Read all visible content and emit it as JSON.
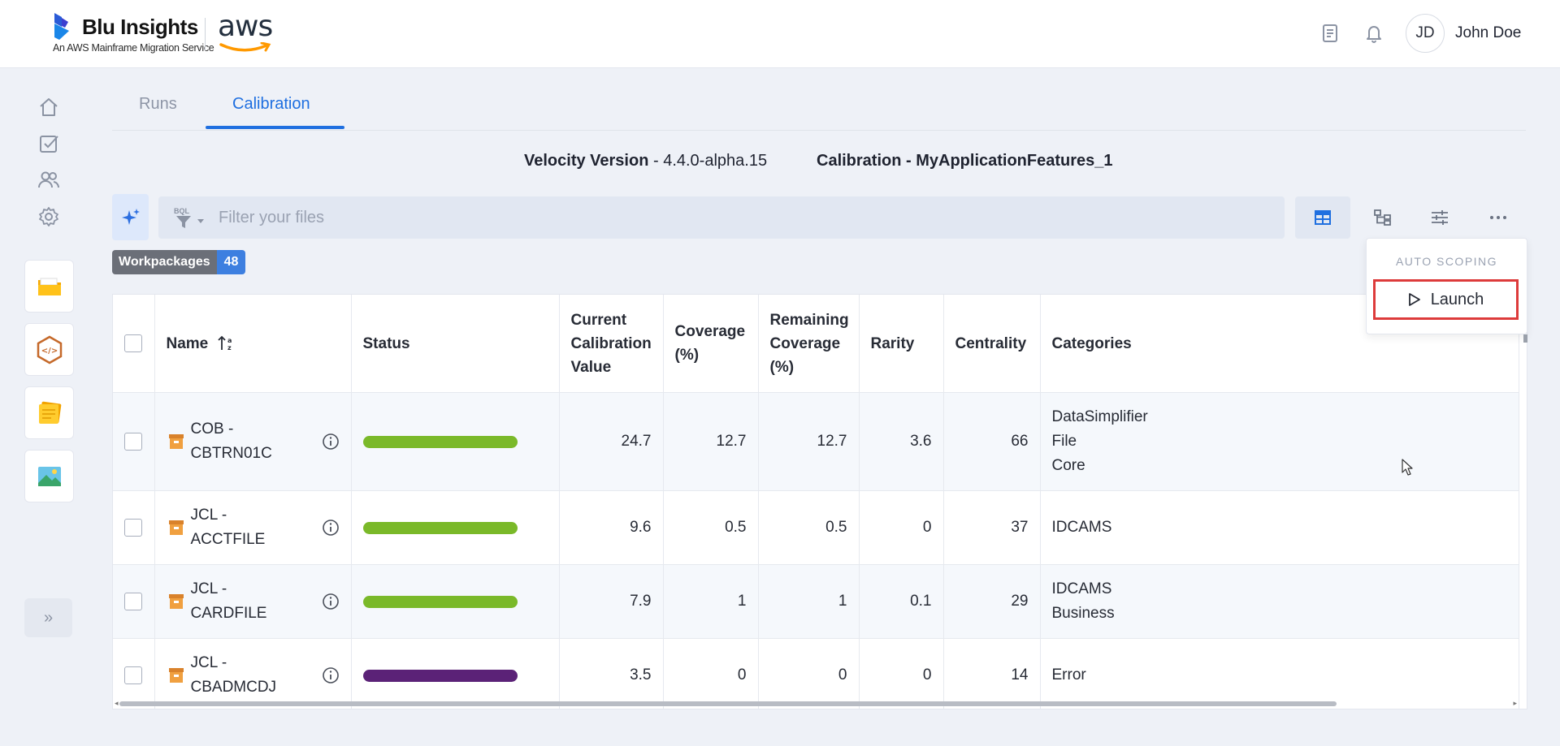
{
  "header": {
    "brand_name": "Blu Insights",
    "brand_subtitle": "An AWS Mainframe Migration Service",
    "partner_logo": "aws",
    "user_initials": "JD",
    "user_name": "John Doe",
    "icons": [
      "docs-icon",
      "bell-icon"
    ]
  },
  "sidebar": {
    "nav": [
      "home-icon",
      "tasks-icon",
      "users-icon",
      "settings-icon"
    ],
    "apps": [
      "folder-app-icon",
      "codebase-app-icon",
      "notes-app-icon",
      "image-app-icon"
    ],
    "expand_label": "»"
  },
  "tabs": [
    {
      "label": "Runs",
      "active": false
    },
    {
      "label": "Calibration",
      "active": true
    }
  ],
  "version": {
    "label": "Velocity Version",
    "value": "- 4.4.0-alpha.15",
    "calibration_label": "Calibration - MyApplicationFeatures_1"
  },
  "filter": {
    "bql_label": "BQL",
    "placeholder": "Filter your files"
  },
  "workpackages": {
    "label": "Workpackages",
    "count": "48"
  },
  "table": {
    "headers": {
      "name": "Name",
      "status": "Status",
      "current_calibration": [
        "Current",
        "Calibration",
        "Value"
      ],
      "coverage": [
        "Coverage",
        "(%)"
      ],
      "remaining": [
        "Remaining",
        "Coverage",
        "(%)"
      ],
      "rarity": "Rarity",
      "centrality": "Centrality",
      "categories": "Categories"
    },
    "rows": [
      {
        "name": [
          "COB -",
          "CBTRN01C"
        ],
        "status_color": "#7ab929",
        "calibration": "24.7",
        "coverage": "12.7",
        "remaining": "12.7",
        "rarity": "3.6",
        "centrality": "66",
        "categories": [
          "DataSimplifier",
          "File",
          "Core"
        ]
      },
      {
        "name": [
          "JCL -",
          "ACCTFILE"
        ],
        "status_color": "#7ab929",
        "calibration": "9.6",
        "coverage": "0.5",
        "remaining": "0.5",
        "rarity": "0",
        "centrality": "37",
        "categories": [
          "IDCAMS"
        ]
      },
      {
        "name": [
          "JCL -",
          "CARDFILE"
        ],
        "status_color": "#7ab929",
        "calibration": "7.9",
        "coverage": "1",
        "remaining": "1",
        "rarity": "0.1",
        "centrality": "29",
        "categories": [
          "IDCAMS",
          "Business"
        ]
      },
      {
        "name": [
          "JCL -",
          "CBADMCDJ"
        ],
        "status_color": "#5b2277",
        "calibration": "3.5",
        "coverage": "0",
        "remaining": "0",
        "rarity": "0",
        "centrality": "14",
        "categories": [
          "Error"
        ]
      }
    ]
  },
  "dropdown": {
    "section_title": "AUTO SCOPING",
    "launch_label": "Launch"
  },
  "colors": {
    "accent": "#1f6fe0",
    "status_ok": "#7ab929",
    "status_error": "#5b2277",
    "highlight": "#dd3b3b"
  }
}
